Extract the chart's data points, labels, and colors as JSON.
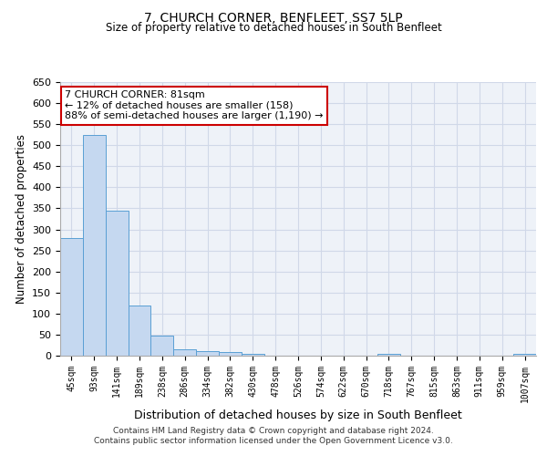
{
  "title": "7, CHURCH CORNER, BENFLEET, SS7 5LP",
  "subtitle": "Size of property relative to detached houses in South Benfleet",
  "xlabel": "Distribution of detached houses by size in South Benfleet",
  "ylabel": "Number of detached properties",
  "footer_line1": "Contains HM Land Registry data © Crown copyright and database right 2024.",
  "footer_line2": "Contains public sector information licensed under the Open Government Licence v3.0.",
  "annotation_line1": "7 CHURCH CORNER: 81sqm",
  "annotation_line2": "← 12% of detached houses are smaller (158)",
  "annotation_line3": "88% of semi-detached houses are larger (1,190) →",
  "bar_color": "#c5d8f0",
  "bar_edge_color": "#5a9fd4",
  "annotation_box_color": "#ffffff",
  "annotation_box_edge_color": "#cc0000",
  "grid_color": "#d0d8e8",
  "background_color": "#eef2f8",
  "categories": [
    "45sqm",
    "93sqm",
    "141sqm",
    "189sqm",
    "238sqm",
    "286sqm",
    "334sqm",
    "382sqm",
    "430sqm",
    "478sqm",
    "526sqm",
    "574sqm",
    "622sqm",
    "670sqm",
    "718sqm",
    "767sqm",
    "815sqm",
    "863sqm",
    "911sqm",
    "959sqm",
    "1007sqm"
  ],
  "values": [
    280,
    525,
    345,
    120,
    48,
    15,
    10,
    8,
    5,
    0,
    0,
    0,
    0,
    0,
    5,
    0,
    0,
    0,
    0,
    0,
    5
  ],
  "ylim": [
    0,
    650
  ],
  "yticks": [
    0,
    50,
    100,
    150,
    200,
    250,
    300,
    350,
    400,
    450,
    500,
    550,
    600,
    650
  ]
}
